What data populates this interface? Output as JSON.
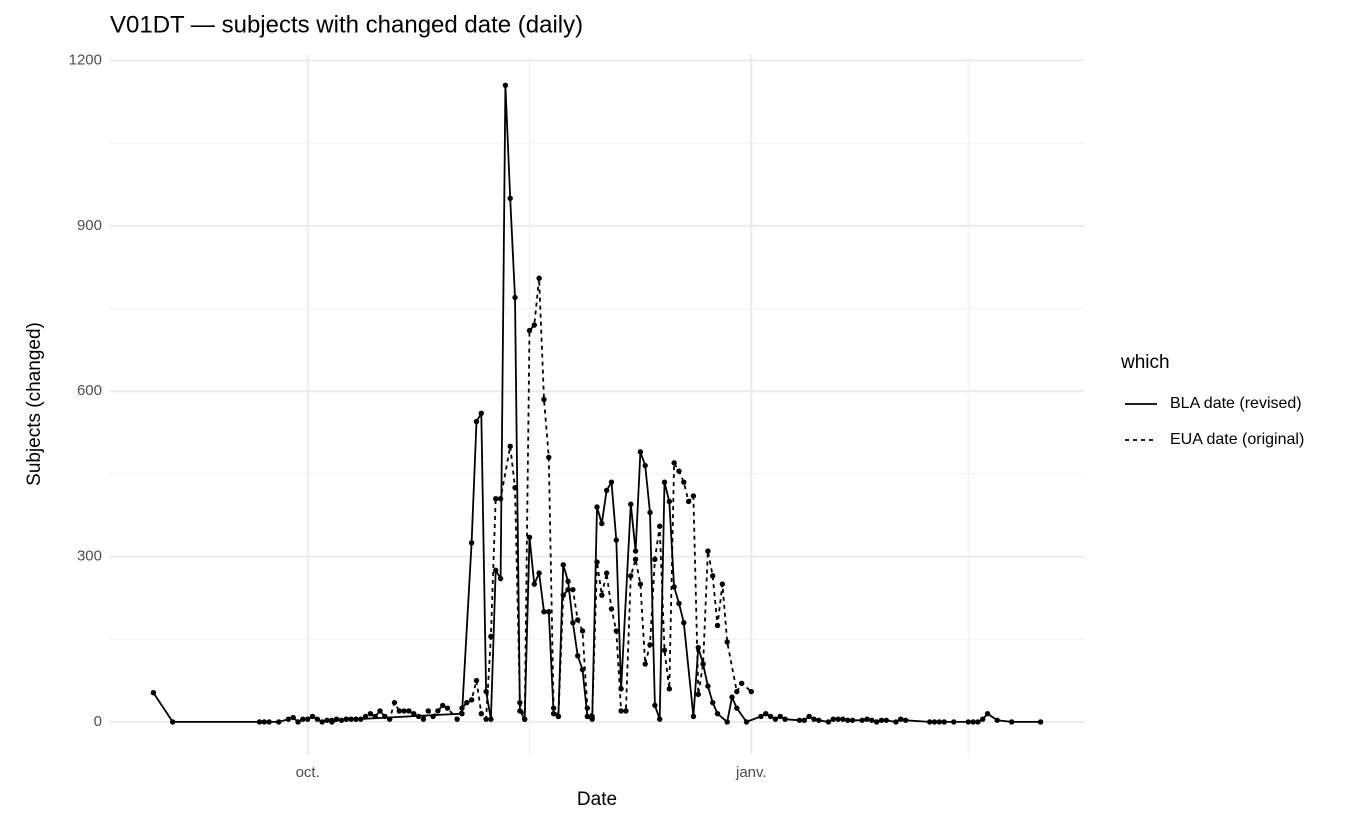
{
  "chart_data": {
    "type": "line",
    "title": "V01DT — subjects with changed date (daily)",
    "x_label": "Date",
    "y_label": "Subjects (changed)",
    "legend_title": "which",
    "xlim": [
      -41,
      161
    ],
    "ylim": [
      -60,
      1210
    ],
    "xticks": [
      {
        "value": 0,
        "label": "oct."
      },
      {
        "value": 92,
        "label": "janv."
      }
    ],
    "xminor": [
      46,
      137
    ],
    "yticks": [
      0,
      300,
      600,
      900,
      1200
    ],
    "yminor": [
      150,
      450,
      750,
      1050
    ],
    "grid": true,
    "series": [
      {
        "name": "BLA date (revised)",
        "color": "#000000",
        "linetype": "solid",
        "x": [
          -32,
          -28,
          -10,
          -9,
          -8,
          -6,
          -4,
          -3,
          -2,
          -1,
          0,
          1,
          2,
          3,
          4,
          5,
          6,
          7,
          8,
          9,
          10,
          32,
          34,
          35,
          36,
          37,
          38,
          39,
          40,
          41,
          42,
          43,
          44,
          45,
          46,
          47,
          48,
          49,
          50,
          51,
          52,
          53,
          54,
          55,
          56,
          57,
          58,
          59,
          60,
          61,
          62,
          63,
          64,
          65,
          67,
          68,
          69,
          70,
          71,
          72,
          73,
          74,
          75,
          76,
          77,
          78,
          80,
          81,
          82,
          83,
          84,
          85,
          87,
          88,
          89,
          91,
          94,
          95,
          96,
          97,
          98,
          99,
          102,
          103,
          104,
          105,
          106,
          108,
          109,
          110,
          111,
          112,
          113,
          115,
          116,
          117,
          118,
          119,
          120,
          122,
          123,
          124,
          129,
          130,
          131,
          132,
          134,
          137,
          138,
          139,
          140,
          141,
          143,
          146,
          152
        ],
        "values": [
          53,
          0,
          0,
          0,
          0,
          0,
          5,
          8,
          0,
          5,
          5,
          10,
          5,
          0,
          3,
          3,
          5,
          3,
          5,
          5,
          5,
          15,
          325,
          545,
          560,
          55,
          5,
          275,
          260,
          1155,
          950,
          770,
          20,
          5,
          335,
          250,
          270,
          200,
          200,
          15,
          10,
          285,
          255,
          180,
          120,
          95,
          10,
          5,
          390,
          360,
          420,
          435,
          330,
          60,
          395,
          310,
          490,
          465,
          380,
          30,
          5,
          435,
          400,
          245,
          215,
          180,
          10,
          135,
          105,
          65,
          35,
          15,
          0,
          45,
          25,
          0,
          10,
          15,
          10,
          5,
          10,
          5,
          3,
          3,
          10,
          5,
          3,
          0,
          5,
          5,
          5,
          3,
          3,
          3,
          5,
          3,
          0,
          3,
          3,
          0,
          5,
          3,
          0,
          0,
          0,
          0,
          0,
          0,
          0,
          0,
          5,
          15,
          3,
          0,
          0
        ]
      },
      {
        "name": "EUA date (original)",
        "color": "#000000",
        "linetype": "dashed",
        "x": [
          5,
          8,
          10,
          11,
          12,
          13,
          14,
          15,
          16,
          17,
          18,
          19,
          20,
          21,
          22,
          23,
          24,
          25,
          26,
          27,
          28,
          29,
          31,
          32,
          33,
          34,
          35,
          36,
          37,
          38,
          39,
          40,
          42,
          43,
          44,
          45,
          46,
          47,
          48,
          49,
          50,
          51,
          52,
          53,
          54,
          55,
          56,
          57,
          58,
          59,
          60,
          61,
          62,
          63,
          64,
          65,
          66,
          67,
          68,
          69,
          70,
          71,
          72,
          73,
          74,
          75,
          76,
          77,
          78,
          79,
          80,
          81,
          82,
          83,
          84,
          85,
          86,
          87,
          89,
          90,
          92
        ],
        "values": [
          0,
          5,
          5,
          5,
          10,
          15,
          10,
          20,
          10,
          5,
          35,
          20,
          20,
          20,
          15,
          10,
          5,
          20,
          10,
          20,
          30,
          25,
          5,
          25,
          35,
          40,
          75,
          15,
          5,
          155,
          405,
          405,
          500,
          425,
          35,
          5,
          710,
          720,
          805,
          585,
          480,
          25,
          10,
          230,
          240,
          240,
          185,
          165,
          25,
          10,
          290,
          230,
          270,
          205,
          165,
          20,
          20,
          265,
          295,
          250,
          105,
          140,
          295,
          355,
          130,
          60,
          470,
          455,
          435,
          400,
          410,
          50,
          105,
          310,
          265,
          175,
          250,
          145,
          55,
          70,
          55
        ]
      }
    ]
  }
}
